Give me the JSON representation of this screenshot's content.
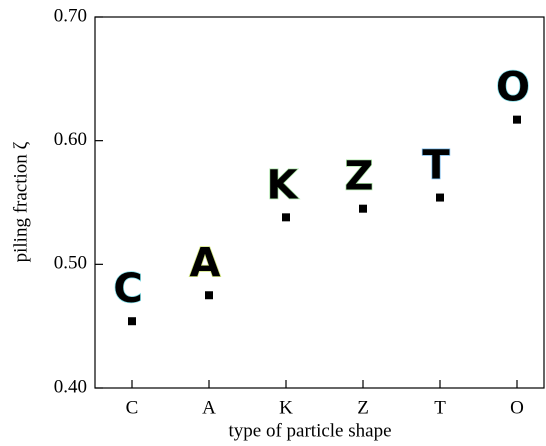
{
  "chart_data": {
    "type": "scatter",
    "x_label": "type of particle shape",
    "y_label": "piling fraction ζ",
    "categories": [
      "C",
      "A",
      "K",
      "Z",
      "T",
      "O"
    ],
    "values": [
      0.454,
      0.475,
      0.538,
      0.545,
      0.554,
      0.617
    ],
    "color": "#000000",
    "icon_colors": [
      "#2ec8d8",
      "#b5d62a",
      "#6fd36a",
      "#7ad870",
      "#1e8ee0",
      "#2ec8d8"
    ],
    "ylim": [
      0.4,
      0.7
    ],
    "yticks": [
      {
        "value": 0.4,
        "label": "0.40"
      },
      {
        "value": 0.5,
        "label": "0.50"
      },
      {
        "value": 0.6,
        "label": "0.60"
      },
      {
        "value": 0.7,
        "label": "0.70"
      }
    ]
  }
}
